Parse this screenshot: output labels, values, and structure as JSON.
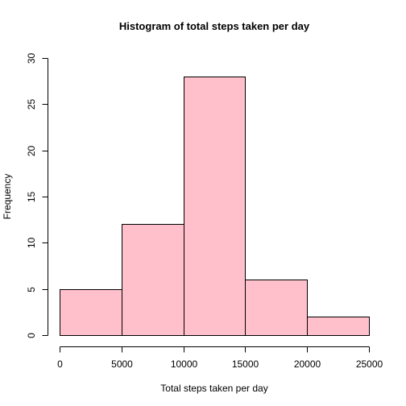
{
  "chart_data": {
    "type": "bar",
    "title": "Histogram of total steps taken per day",
    "xlabel": "Total steps taken per day",
    "ylabel": "Frequency",
    "bins": [
      {
        "from": 0,
        "to": 5000,
        "count": 5
      },
      {
        "from": 5000,
        "to": 10000,
        "count": 12
      },
      {
        "from": 10000,
        "to": 15000,
        "count": 28
      },
      {
        "from": 15000,
        "to": 20000,
        "count": 6
      },
      {
        "from": 20000,
        "to": 25000,
        "count": 2
      }
    ],
    "xlim": [
      0,
      25000
    ],
    "ylim": [
      0,
      30
    ],
    "x_ticks": [
      "0",
      "5000",
      "10000",
      "15000",
      "20000",
      "25000"
    ],
    "y_ticks": [
      "0",
      "5",
      "10",
      "15",
      "20",
      "25",
      "30"
    ],
    "bar_color": "#FFC0CB",
    "grid": false,
    "legend": "none"
  }
}
